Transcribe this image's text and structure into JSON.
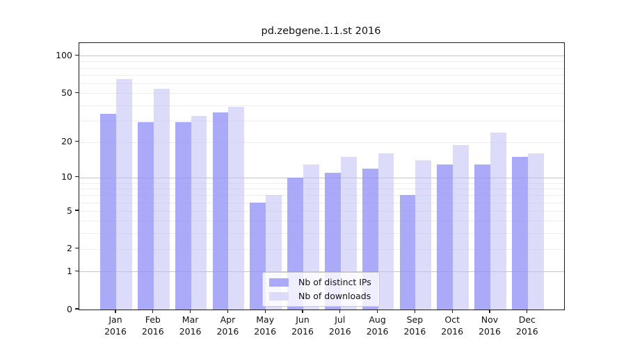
{
  "chart_data": {
    "type": "bar",
    "title": "pd.zebgene.1.1.st 2016",
    "year_label": "2016",
    "categories": [
      "Jan",
      "Feb",
      "Mar",
      "Apr",
      "May",
      "Jun",
      "Jul",
      "Aug",
      "Sep",
      "Oct",
      "Nov",
      "Dec"
    ],
    "series": [
      {
        "name": "Nb of distinct IPs",
        "swatch_color": "#aaaaf8",
        "fill_color": "rgba(149,149,246,0.8)",
        "values": [
          34,
          29,
          29,
          35,
          6,
          10,
          11,
          12,
          7,
          13,
          13,
          15
        ]
      },
      {
        "name": "Nb of downloads",
        "swatch_color": "#dcdcfa",
        "fill_color": "rgba(191,191,246,0.55)",
        "values": [
          65,
          54,
          33,
          39,
          7,
          13,
          15,
          16,
          14,
          19,
          24,
          16
        ]
      }
    ],
    "yscale": "log1p",
    "ylim": [
      0,
      126
    ],
    "yticks": [
      0,
      1,
      2,
      5,
      10,
      20,
      50,
      100
    ],
    "major_gridlines": [
      1,
      10,
      100
    ],
    "minor_gridlines": [
      2,
      3,
      4,
      5,
      6,
      7,
      8,
      9,
      20,
      30,
      40,
      50,
      60,
      70,
      80,
      90
    ],
    "colors": {
      "major_grid": "#c5c5c5",
      "minor_grid": "#ededed",
      "spine": "#1a1a1a",
      "text": "#111111",
      "background": "#ffffff"
    },
    "legend_position": "lower center",
    "grid": true
  }
}
